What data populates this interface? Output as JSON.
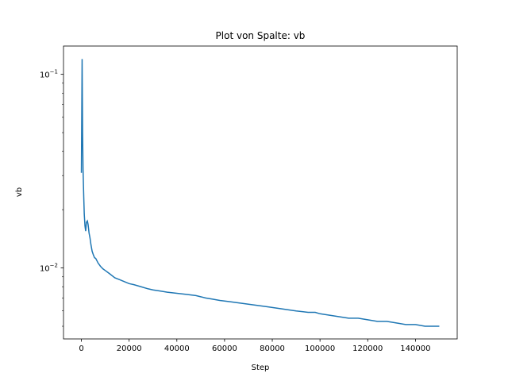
{
  "chart_data": {
    "type": "line",
    "title": "Plot von Spalte: vb",
    "xlabel": "Step",
    "ylabel": "vb",
    "xlim": [
      -7500,
      157500
    ],
    "ylim": [
      0.0043,
      0.14
    ],
    "yscale": "log",
    "grid": false,
    "x_ticks": [
      0,
      20000,
      40000,
      60000,
      80000,
      100000,
      120000,
      140000
    ],
    "x_tick_labels": [
      "0",
      "20000",
      "40000",
      "60000",
      "80000",
      "100000",
      "120000",
      "140000"
    ],
    "y_ticks": [
      0.01,
      0.1
    ],
    "y_tick_base": "10",
    "y_tick_exponents": [
      "−2",
      "−1"
    ],
    "series": [
      {
        "color": "#1f77b4",
        "x": [
          0,
          300,
          500,
          700,
          1000,
          1200,
          1500,
          1800,
          2100,
          2500,
          2800,
          3200,
          3600,
          4000,
          4500,
          5000,
          5500,
          6000,
          6500,
          7000,
          8000,
          9000,
          10000,
          11000,
          12000,
          14000,
          16000,
          18000,
          20000,
          22000,
          25000,
          28000,
          30000,
          33000,
          36000,
          40000,
          44000,
          48000,
          50000,
          52000,
          55000,
          58000,
          62000,
          66000,
          70000,
          74000,
          78000,
          82000,
          86000,
          90000,
          95000,
          98000,
          100000,
          104000,
          108000,
          112000,
          116000,
          120000,
          124000,
          128000,
          132000,
          136000,
          140000,
          144000,
          148000,
          150000
        ],
        "y": [
          0.031,
          0.12,
          0.05,
          0.032,
          0.023,
          0.019,
          0.0165,
          0.0155,
          0.0172,
          0.0175,
          0.0168,
          0.0152,
          0.0143,
          0.0132,
          0.0122,
          0.0117,
          0.0113,
          0.0112,
          0.0109,
          0.0106,
          0.0102,
          0.0099,
          0.0097,
          0.0095,
          0.0093,
          0.0089,
          0.0087,
          0.0085,
          0.0083,
          0.0082,
          0.008,
          0.0078,
          0.0077,
          0.0076,
          0.0075,
          0.0074,
          0.0073,
          0.0072,
          0.0071,
          0.007,
          0.0069,
          0.0068,
          0.0067,
          0.0066,
          0.0065,
          0.0064,
          0.0063,
          0.0062,
          0.0061,
          0.006,
          0.0059,
          0.0059,
          0.0058,
          0.0057,
          0.0056,
          0.0055,
          0.0055,
          0.0054,
          0.0053,
          0.0053,
          0.0052,
          0.0051,
          0.0051,
          0.005,
          0.005,
          0.005
        ]
      }
    ]
  }
}
